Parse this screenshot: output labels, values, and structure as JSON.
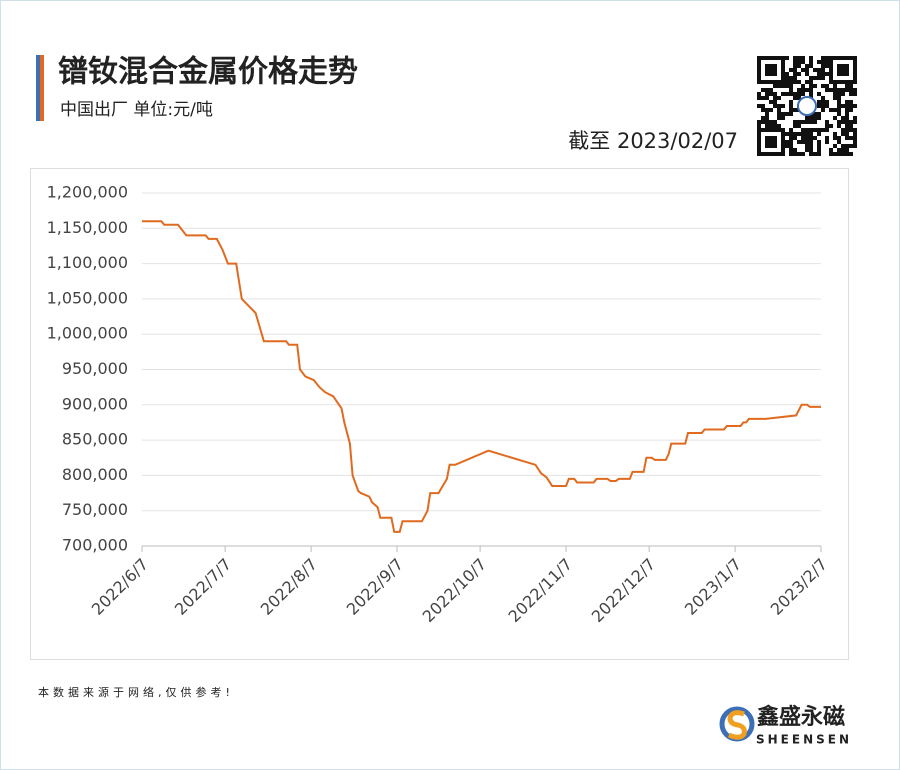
{
  "chart_data": {
    "type": "line",
    "title": "镨钕混合金属价格走势",
    "subtitle": "中国出厂 单位:元/吨",
    "annotation": "截至 2023/02/07",
    "x": [
      "2022/6/7",
      "2022/6/14",
      "2022/6/15",
      "2022/6/20",
      "2022/6/23",
      "2022/6/30",
      "2022/7/1",
      "2022/7/4",
      "2022/7/6",
      "2022/7/8",
      "2022/7/11",
      "2022/7/13",
      "2022/7/18",
      "2022/7/21",
      "2022/7/29",
      "2022/7/30",
      "2022/8/2",
      "2022/8/3",
      "2022/8/5",
      "2022/8/8",
      "2022/8/10",
      "2022/8/12",
      "2022/8/15",
      "2022/8/18",
      "2022/8/19",
      "2022/8/21",
      "2022/8/22",
      "2022/8/24",
      "2022/8/25",
      "2022/8/28",
      "2022/8/29",
      "2022/8/31",
      "2022/9/1",
      "2022/9/5",
      "2022/9/6",
      "2022/9/8",
      "2022/9/9",
      "2022/9/16",
      "2022/9/18",
      "2022/9/19",
      "2022/9/22",
      "2022/9/25",
      "2022/9/26",
      "2022/9/28",
      "2022/10/10",
      "2022/10/27",
      "2022/10/29",
      "2022/10/31",
      "2022/11/2",
      "2022/11/7",
      "2022/11/8",
      "2022/11/10",
      "2022/11/11",
      "2022/11/17",
      "2022/11/18",
      "2022/11/22",
      "2022/11/23",
      "2022/11/25",
      "2022/11/26",
      "2022/11/30",
      "2022/12/1",
      "2022/12/5",
      "2022/12/6",
      "2022/12/8",
      "2022/12/9",
      "2022/12/13",
      "2022/12/14",
      "2022/12/15",
      "2022/12/20",
      "2022/12/21",
      "2022/12/26",
      "2022/12/27",
      "2023/1/3",
      "2023/1/4",
      "2023/1/9",
      "2023/1/10",
      "2023/1/11",
      "2023/1/12",
      "2023/1/18",
      "2023/1/29",
      "2023/1/31",
      "2023/2/2",
      "2023/2/3",
      "2023/2/7"
    ],
    "series": [
      {
        "color": "#e06a1f",
        "values": [
          1160000,
          1160000,
          1155000,
          1155000,
          1140000,
          1140000,
          1135000,
          1135000,
          1120000,
          1100000,
          1100000,
          1050000,
          1030000,
          990000,
          990000,
          985000,
          985000,
          950000,
          940000,
          935000,
          925000,
          918000,
          912000,
          895000,
          875000,
          845000,
          800000,
          778000,
          775000,
          770000,
          762000,
          755000,
          740000,
          740000,
          720000,
          720000,
          735000,
          735000,
          750000,
          775000,
          775000,
          795000,
          815000,
          815000,
          835000,
          815000,
          803000,
          797000,
          785000,
          785000,
          795000,
          795000,
          790000,
          790000,
          795000,
          795000,
          792000,
          792000,
          795000,
          795000,
          805000,
          805000,
          825000,
          825000,
          822000,
          822000,
          830000,
          845000,
          845000,
          860000,
          860000,
          865000,
          865000,
          870000,
          870000,
          875000,
          875000,
          880000,
          880000,
          885000,
          900000,
          900000,
          897000,
          897000
        ]
      }
    ],
    "xlim": [
      "2022/6/7",
      "2023/2/7"
    ],
    "xticks": [
      "2022/6/7",
      "2022/7/7",
      "2022/8/7",
      "2022/9/7",
      "2022/10/7",
      "2022/11/7",
      "2022/12/7",
      "2023/1/7",
      "2023/2/7"
    ],
    "ylim": [
      700000,
      1200000
    ],
    "yticks": [
      {
        "value": 700000,
        "label": "700,000"
      },
      {
        "value": 750000,
        "label": "750,000"
      },
      {
        "value": 800000,
        "label": "800,000"
      },
      {
        "value": 850000,
        "label": "850,000"
      },
      {
        "value": 900000,
        "label": "900,000"
      },
      {
        "value": 950000,
        "label": "950,000"
      },
      {
        "value": 1000000,
        "label": "1,000,000"
      },
      {
        "value": 1050000,
        "label": "1,050,000"
      },
      {
        "value": 1100000,
        "label": "1,100,000"
      },
      {
        "value": 1150000,
        "label": "1,150,000"
      },
      {
        "value": 1200000,
        "label": "1,200,000"
      }
    ],
    "grid": true
  },
  "footer": {
    "note": "本数据来源于网络,仅供参考!",
    "brand": "鑫盛永磁",
    "brand_en": "SHEENSEN"
  }
}
